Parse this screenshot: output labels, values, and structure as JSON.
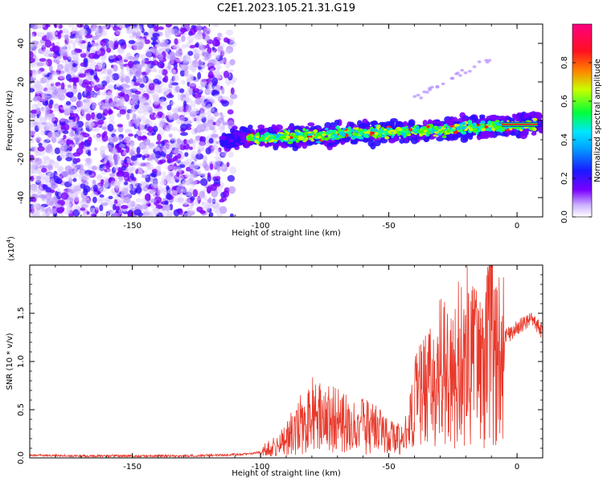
{
  "figure_title": "C2E1.2023.105.21.31.G19",
  "chart_data": [
    {
      "type": "heatmap",
      "title": "C2E1.2023.105.21.31.G19",
      "xlabel": "Height of straight line (km)",
      "ylabel": "Frequency (Hz)",
      "xlim": [
        -190,
        10
      ],
      "ylim": [
        -50,
        50
      ],
      "xticks": [
        -150,
        -100,
        -50,
        0
      ],
      "xtick_labels": [
        "-150",
        "-100",
        "-50",
        "0"
      ],
      "yticks": [
        -40,
        -20,
        0,
        20,
        40
      ],
      "ytick_labels": [
        "-40",
        "-20",
        "0",
        "20",
        "40"
      ],
      "colorbar": {
        "label": "Normalized spectral amplitude",
        "range": [
          0,
          1
        ],
        "ticks": [
          0.0,
          0.2,
          0.4,
          0.6,
          0.8
        ],
        "tick_labels": [
          "0.0",
          "0.2",
          "0.4",
          "0.6",
          "0.8"
        ],
        "colormap": [
          "#ffffff",
          "#7a00ff",
          "#1a1aff",
          "#00e5ff",
          "#00ff3a",
          "#c8ff00",
          "#ff8000",
          "#ff0080"
        ]
      },
      "features": [
        {
          "name": "noise",
          "x_range": [
            -190,
            -110
          ],
          "freq_range": [
            -50,
            50
          ],
          "amplitude": 0.1
        },
        {
          "name": "signal band",
          "x_range": [
            -115,
            10
          ],
          "freq_start": -10,
          "freq_end": -2,
          "amplitude_max": 1.0
        },
        {
          "name": "faint trace",
          "x_range": [
            -40,
            -10
          ],
          "freq_start": 12,
          "freq_end": 32,
          "amplitude": 0.15
        }
      ]
    },
    {
      "type": "line",
      "xlabel": "Height of straight line (km)",
      "ylabel": "SNR (10 * v/v)",
      "scale_label": "(x10",
      "scale_exponent": "4",
      "scale_suffix": ")",
      "xlim": [
        -190,
        10
      ],
      "ylim": [
        0,
        2.0
      ],
      "xticks": [
        -150,
        -100,
        -50,
        0
      ],
      "xtick_labels": [
        "-150",
        "-100",
        "-50",
        "0"
      ],
      "yticks": [
        0.0,
        0.5,
        1.0,
        1.5
      ],
      "ytick_labels": [
        "0.0",
        "0.5",
        "1.0",
        "1.5"
      ],
      "color": "#e8392b",
      "series": [
        {
          "name": "SNR",
          "x": [
            -190,
            -170,
            -150,
            -130,
            -115,
            -105,
            -100,
            -95,
            -90,
            -85,
            -80,
            -75,
            -70,
            -65,
            -60,
            -55,
            -52,
            -50,
            -45,
            -42,
            -40,
            -37,
            -35,
            -30,
            -25,
            -20,
            -15,
            -10,
            -8,
            -5,
            -2,
            0,
            3,
            6,
            10
          ],
          "y": [
            0.03,
            0.02,
            0.02,
            0.02,
            0.03,
            0.04,
            0.06,
            0.12,
            0.2,
            0.33,
            0.45,
            0.42,
            0.38,
            0.35,
            0.33,
            0.3,
            0.28,
            0.22,
            0.18,
            0.3,
            0.55,
            0.65,
            0.7,
            0.9,
            0.8,
            1.1,
            0.9,
            1.0,
            0.95,
            1.25,
            1.3,
            1.35,
            1.4,
            1.45,
            1.3
          ]
        }
      ]
    }
  ]
}
